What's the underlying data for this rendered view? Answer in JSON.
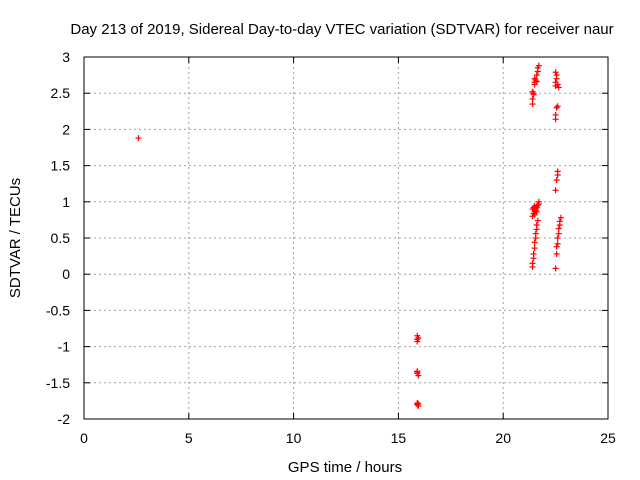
{
  "chart_data": {
    "type": "scatter",
    "title": "Day 213 of 2019, Sidereal Day-to-day VTEC variation (SDTVAR) for receiver naur",
    "xlabel": "GPS time / hours",
    "ylabel": "SDTVAR / TECUs",
    "xlim": [
      0,
      25
    ],
    "ylim": [
      -2,
      3
    ],
    "xticks": [
      "0",
      "5",
      "10",
      "15",
      "20",
      "25"
    ],
    "yticks": [
      "3",
      "2.5",
      "2",
      "1.5",
      "1",
      "0.5",
      "0",
      "-0.5",
      "-1",
      "-1.5",
      "-2"
    ],
    "grid": true,
    "marker": "plus",
    "color": "#ff0000",
    "series": [
      {
        "name": "SDTVAR",
        "points": [
          [
            2.6,
            1.88
          ],
          [
            15.9,
            -0.85
          ],
          [
            15.9,
            -0.9
          ],
          [
            15.9,
            -0.93
          ],
          [
            15.95,
            -0.88
          ],
          [
            15.9,
            -1.34
          ],
          [
            15.9,
            -1.37
          ],
          [
            15.95,
            -1.4
          ],
          [
            15.9,
            -1.35
          ],
          [
            15.9,
            -1.78
          ],
          [
            15.9,
            -1.8
          ],
          [
            15.95,
            -1.82
          ],
          [
            15.95,
            -1.79
          ],
          [
            21.4,
            2.35
          ],
          [
            21.4,
            2.42
          ],
          [
            21.45,
            2.48
          ],
          [
            21.4,
            2.52
          ],
          [
            21.45,
            2.5
          ],
          [
            21.5,
            2.62
          ],
          [
            21.5,
            2.65
          ],
          [
            21.55,
            2.68
          ],
          [
            21.6,
            2.66
          ],
          [
            21.5,
            2.7
          ],
          [
            21.6,
            2.75
          ],
          [
            21.65,
            2.8
          ],
          [
            21.65,
            2.85
          ],
          [
            21.7,
            2.88
          ],
          [
            21.4,
            0.1
          ],
          [
            21.4,
            0.15
          ],
          [
            21.45,
            0.22
          ],
          [
            21.45,
            0.28
          ],
          [
            21.5,
            0.36
          ],
          [
            21.5,
            0.44
          ],
          [
            21.55,
            0.5
          ],
          [
            21.55,
            0.56
          ],
          [
            21.6,
            0.62
          ],
          [
            21.6,
            0.68
          ],
          [
            21.65,
            0.74
          ],
          [
            21.4,
            0.8
          ],
          [
            21.45,
            0.84
          ],
          [
            21.5,
            0.87
          ],
          [
            21.55,
            0.88
          ],
          [
            21.4,
            0.9
          ],
          [
            21.45,
            0.92
          ],
          [
            21.5,
            0.94
          ],
          [
            21.55,
            0.9
          ],
          [
            21.6,
            0.92
          ],
          [
            21.65,
            0.95
          ],
          [
            21.7,
            0.97
          ],
          [
            21.7,
            1.0
          ],
          [
            21.5,
            0.82
          ],
          [
            21.6,
            0.86
          ],
          [
            22.5,
            2.6
          ],
          [
            22.5,
            2.65
          ],
          [
            22.55,
            2.7
          ],
          [
            22.55,
            2.75
          ],
          [
            22.5,
            2.79
          ],
          [
            22.6,
            2.62
          ],
          [
            22.65,
            2.58
          ],
          [
            22.55,
            2.3
          ],
          [
            22.6,
            2.32
          ],
          [
            22.5,
            2.14
          ],
          [
            22.5,
            2.2
          ],
          [
            22.5,
            1.16
          ],
          [
            22.55,
            1.3
          ],
          [
            22.6,
            1.37
          ],
          [
            22.6,
            1.42
          ],
          [
            22.5,
            0.08
          ],
          [
            22.55,
            0.28
          ],
          [
            22.55,
            0.38
          ],
          [
            22.6,
            0.42
          ],
          [
            22.6,
            0.5
          ],
          [
            22.65,
            0.56
          ],
          [
            22.65,
            0.63
          ],
          [
            22.7,
            0.68
          ],
          [
            22.7,
            0.73
          ],
          [
            22.75,
            0.78
          ]
        ]
      }
    ]
  }
}
